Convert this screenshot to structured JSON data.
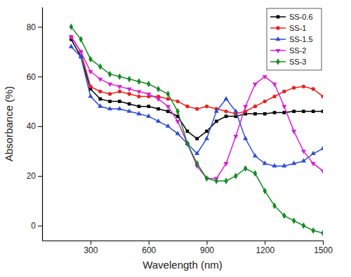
{
  "chart_data": {
    "type": "line",
    "x_label": "Wavelength (nm)",
    "y_label": "Absorbance (%)",
    "x": [
      200,
      250,
      300,
      350,
      400,
      450,
      500,
      550,
      600,
      650,
      700,
      750,
      800,
      850,
      900,
      950,
      1000,
      1050,
      1100,
      1150,
      1200,
      1250,
      1300,
      1350,
      1400,
      1450,
      1500
    ],
    "series": [
      {
        "name": "SS-0.6",
        "color": "#000000",
        "marker": "square",
        "line_style": "solid",
        "values": [
          75,
          68,
          55,
          51,
          50,
          50,
          49,
          48,
          48,
          47,
          46,
          44,
          38,
          35,
          38,
          42,
          44,
          44,
          45,
          45,
          45,
          45.5,
          45.5,
          46,
          46,
          46,
          46
        ]
      },
      {
        "name": "SS-1",
        "color": "#e8221c",
        "marker": "circle",
        "line_style": "solid",
        "values": [
          76,
          70,
          56,
          54,
          53,
          54,
          53,
          52,
          52,
          52,
          51,
          50,
          48,
          47,
          48,
          47,
          46,
          45,
          46,
          48,
          50,
          52,
          54,
          55.5,
          56,
          55,
          52
        ]
      },
      {
        "name": "SS-1.5",
        "color": "#2b4bd6",
        "marker": "triangle-up",
        "line_style": "solid",
        "values": [
          72,
          68,
          52,
          48,
          47,
          47,
          46,
          45,
          44,
          42,
          40,
          37,
          33,
          29,
          35,
          46,
          51,
          46,
          35,
          28,
          25,
          24,
          24,
          25,
          26,
          29,
          31
        ]
      },
      {
        "name": "SS-2",
        "color": "#d81fd8",
        "marker": "triangle-down",
        "line_style": "solid",
        "values": [
          76,
          70,
          62,
          59,
          57,
          56,
          55,
          54,
          53,
          51,
          48,
          42,
          33,
          24,
          19,
          19,
          25,
          36,
          48,
          57,
          60,
          57,
          48,
          38,
          30,
          25,
          22
        ]
      },
      {
        "name": "SS-3",
        "color": "#138a1f",
        "marker": "diamond",
        "line_style": "solid",
        "values": [
          80,
          75,
          67,
          64,
          61,
          60,
          59,
          58,
          57,
          55,
          53,
          46,
          33,
          25,
          19,
          18,
          18,
          20,
          23,
          21,
          14,
          8,
          4,
          2,
          0,
          -2,
          -3
        ]
      }
    ],
    "xlim": [
      50,
      1500
    ],
    "xticks": [
      300,
      600,
      900,
      1200,
      1500
    ],
    "ylim": [
      -6,
      88
    ],
    "yticks": [
      0,
      20,
      40,
      60,
      80
    ],
    "grid": false,
    "legend": "top-right"
  }
}
